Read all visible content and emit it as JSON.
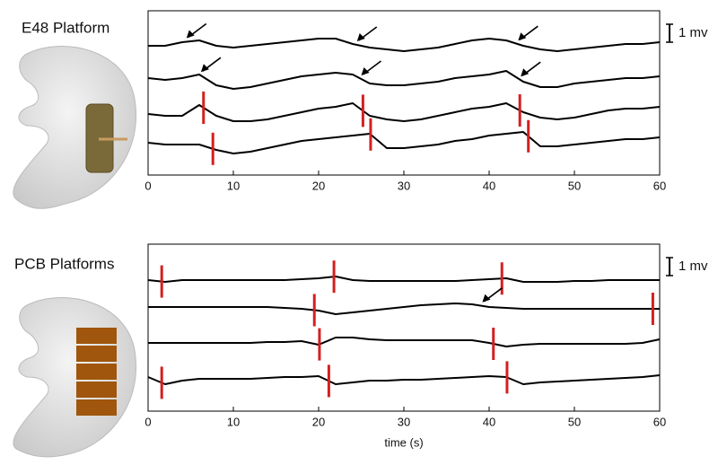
{
  "chart_data": [
    {
      "type": "line",
      "title": "E48 Platform",
      "scale_label": "1 mv",
      "x": [
        0,
        2,
        4,
        6,
        8,
        10,
        12,
        14,
        16,
        18,
        20,
        22,
        24,
        26,
        28,
        30,
        32,
        34,
        36,
        38,
        40,
        42,
        44,
        46,
        48,
        50,
        52,
        54,
        56,
        58,
        60
      ],
      "xlim": [
        0,
        60
      ],
      "xticks": [
        0,
        10,
        20,
        30,
        40,
        50,
        60
      ],
      "ylim": [
        0,
        9.15
      ],
      "series": [
        {
          "color": "#000000",
          "values": [
            7.2,
            7.2,
            7.4,
            7.5,
            7.2,
            7.1,
            7.2,
            7.3,
            7.4,
            7.5,
            7.6,
            7.6,
            7.3,
            7.1,
            7.0,
            6.9,
            7.0,
            7.1,
            7.3,
            7.5,
            7.6,
            7.5,
            7.2,
            7.0,
            6.9,
            7.0,
            7.1,
            7.2,
            7.3,
            7.3,
            7.4
          ]
        },
        {
          "color": "#000000",
          "values": [
            5.4,
            5.3,
            5.4,
            5.6,
            5.0,
            4.8,
            4.9,
            5.1,
            5.3,
            5.5,
            5.6,
            5.7,
            5.6,
            5.1,
            5.0,
            5.0,
            5.1,
            5.2,
            5.4,
            5.5,
            5.6,
            5.8,
            5.2,
            4.9,
            4.9,
            5.1,
            5.2,
            5.3,
            5.4,
            5.4,
            5.5
          ]
        },
        {
          "color": "#000000",
          "values": [
            3.4,
            3.3,
            3.3,
            3.9,
            3.3,
            3.0,
            3.0,
            3.1,
            3.3,
            3.5,
            3.7,
            3.8,
            4.0,
            3.3,
            3.1,
            3.0,
            3.1,
            3.3,
            3.5,
            3.7,
            3.8,
            4.0,
            3.5,
            3.2,
            3.1,
            3.2,
            3.4,
            3.6,
            3.7,
            3.7,
            3.8
          ]
        },
        {
          "color": "#000000",
          "values": [
            1.8,
            1.7,
            1.7,
            1.7,
            1.4,
            1.2,
            1.3,
            1.5,
            1.7,
            1.9,
            2.0,
            2.1,
            2.2,
            2.3,
            1.5,
            1.5,
            1.6,
            1.7,
            1.9,
            2.0,
            2.2,
            2.3,
            2.4,
            1.6,
            1.6,
            1.7,
            1.8,
            1.9,
            2.0,
            2.0,
            2.1
          ]
        }
      ],
      "marker_color": "#d42020",
      "events": [
        {
          "series": 2,
          "x": 6.5
        },
        {
          "series": 2,
          "x": 25.2
        },
        {
          "series": 2,
          "x": 43.6
        },
        {
          "series": 3,
          "x": 7.6
        },
        {
          "series": 3,
          "x": 26.1
        },
        {
          "series": 3,
          "x": 44.6
        }
      ],
      "arrows": [
        {
          "series": 0,
          "x": 4.5
        },
        {
          "series": 0,
          "x": 24.5
        },
        {
          "series": 0,
          "x": 43.4
        },
        {
          "series": 1,
          "x": 6.2
        },
        {
          "series": 1,
          "x": 25.0
        },
        {
          "series": 1,
          "x": 43.7
        }
      ]
    },
    {
      "type": "line",
      "title": "PCB Platforms",
      "scale_label": "1 mv",
      "xlabel": "time (s)",
      "x": [
        0,
        2,
        4,
        6,
        8,
        10,
        12,
        14,
        16,
        18,
        20,
        22,
        24,
        26,
        28,
        30,
        32,
        34,
        36,
        38,
        40,
        42,
        44,
        46,
        48,
        50,
        52,
        54,
        56,
        58,
        60
      ],
      "xlim": [
        0,
        60
      ],
      "xticks": [
        0,
        10,
        20,
        30,
        40,
        50,
        60
      ],
      "ylim": [
        0,
        9.3
      ],
      "series": [
        {
          "color": "#000000",
          "values": [
            7.3,
            7.2,
            7.3,
            7.3,
            7.3,
            7.3,
            7.3,
            7.3,
            7.3,
            7.35,
            7.4,
            7.5,
            7.3,
            7.25,
            7.25,
            7.25,
            7.25,
            7.25,
            7.25,
            7.3,
            7.35,
            7.4,
            7.2,
            7.2,
            7.2,
            7.25,
            7.25,
            7.3,
            7.3,
            7.3,
            7.3
          ]
        },
        {
          "color": "#000000",
          "values": [
            5.8,
            5.8,
            5.8,
            5.8,
            5.8,
            5.8,
            5.8,
            5.8,
            5.75,
            5.7,
            5.6,
            5.4,
            5.5,
            5.6,
            5.7,
            5.8,
            5.9,
            5.95,
            6.0,
            5.95,
            5.8,
            5.75,
            5.7,
            5.7,
            5.7,
            5.7,
            5.7,
            5.7,
            5.7,
            5.7,
            5.7
          ]
        },
        {
          "color": "#000000",
          "values": [
            3.8,
            3.8,
            3.8,
            3.8,
            3.8,
            3.8,
            3.8,
            3.85,
            3.85,
            3.9,
            3.7,
            4.1,
            4.1,
            4.0,
            3.95,
            3.95,
            3.95,
            3.95,
            3.95,
            3.95,
            3.8,
            3.6,
            3.7,
            3.75,
            3.75,
            3.75,
            3.75,
            3.75,
            3.75,
            3.8,
            4.0
          ]
        },
        {
          "color": "#000000",
          "values": [
            1.9,
            1.5,
            1.7,
            1.8,
            1.8,
            1.8,
            1.8,
            1.85,
            1.9,
            1.9,
            1.95,
            1.5,
            1.6,
            1.7,
            1.7,
            1.75,
            1.75,
            1.8,
            1.85,
            1.9,
            1.95,
            1.9,
            1.5,
            1.6,
            1.65,
            1.7,
            1.75,
            1.8,
            1.85,
            1.9,
            2.0
          ]
        }
      ],
      "marker_color": "#d42020",
      "events": [
        {
          "series": 0,
          "x": 1.6
        },
        {
          "series": 0,
          "x": 21.8
        },
        {
          "series": 0,
          "x": 41.5
        },
        {
          "series": 1,
          "x": 19.5
        },
        {
          "series": 1,
          "x": 59.2
        },
        {
          "series": 2,
          "x": 20.1
        },
        {
          "series": 2,
          "x": 40.5
        },
        {
          "series": 3,
          "x": 1.6
        },
        {
          "series": 3,
          "x": 21.2
        },
        {
          "series": 3,
          "x": 42.1
        }
      ],
      "arrows": [
        {
          "series": 1,
          "x": 39.2
        }
      ]
    }
  ]
}
